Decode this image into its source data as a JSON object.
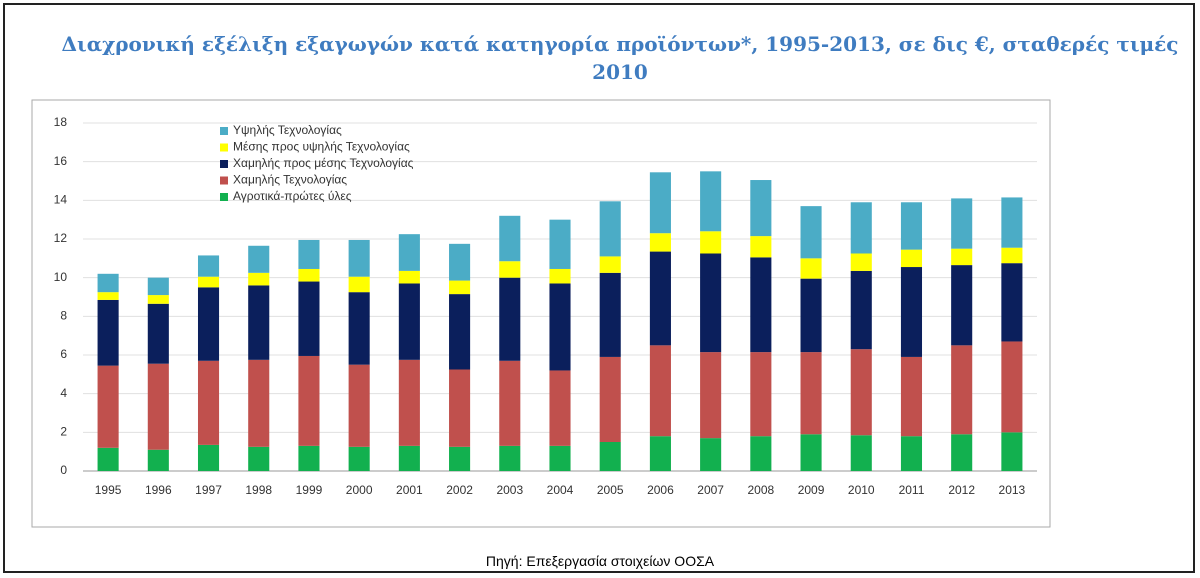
{
  "chart_data": {
    "type": "stacked_bar",
    "title": "Διαχρονική εξέλιξη εξαγωγών κατά κατηγορία προϊόντων*, 1995-2013, σε δις €, σταθερές τιμές 2010",
    "source": "Πηγή:  Επεξεργασία στοιχείων ΟΟΣΑ",
    "categories": [
      "1995",
      "1996",
      "1997",
      "1998",
      "1999",
      "2000",
      "2001",
      "2002",
      "2003",
      "2004",
      "2005",
      "2006",
      "2007",
      "2008",
      "2009",
      "2010",
      "2011",
      "2012",
      "2013"
    ],
    "series": [
      {
        "name": "Αγροτικά-πρώτες ύλες",
        "color": "#12b04f",
        "values": [
          1.2,
          1.1,
          1.35,
          1.25,
          1.3,
          1.25,
          1.3,
          1.25,
          1.3,
          1.3,
          1.5,
          1.8,
          1.7,
          1.8,
          1.9,
          1.85,
          1.8,
          1.9,
          2.0
        ]
      },
      {
        "name": "Χαμηλής Τεχνολογίας",
        "color": "#c0504d",
        "values": [
          4.25,
          4.45,
          4.35,
          4.5,
          4.65,
          4.25,
          4.45,
          4.0,
          4.4,
          3.9,
          4.4,
          4.7,
          4.45,
          4.35,
          4.25,
          4.45,
          4.1,
          4.6,
          4.7
        ]
      },
      {
        "name": "Χαμηλής προς μέσης Τεχνολογίας",
        "color": "#0b1f5c",
        "values": [
          3.4,
          3.1,
          3.8,
          3.85,
          3.85,
          3.75,
          3.95,
          3.9,
          4.3,
          4.5,
          4.35,
          4.85,
          5.1,
          4.9,
          3.8,
          4.05,
          4.65,
          4.15,
          4.05
        ]
      },
      {
        "name": "Μέσης προς υψηλής Τεχνολογίας",
        "color": "#ffff00",
        "values": [
          0.4,
          0.45,
          0.55,
          0.65,
          0.65,
          0.8,
          0.65,
          0.7,
          0.85,
          0.75,
          0.85,
          0.95,
          1.15,
          1.1,
          1.05,
          0.9,
          0.9,
          0.85,
          0.8
        ]
      },
      {
        "name": "Υψηλής Τεχνολογίας",
        "color": "#4bacc6",
        "values": [
          0.95,
          0.9,
          1.1,
          1.4,
          1.5,
          1.9,
          1.9,
          1.9,
          2.35,
          2.55,
          2.85,
          3.15,
          3.1,
          2.9,
          2.7,
          2.65,
          2.45,
          2.6,
          2.6
        ]
      }
    ],
    "ylim": [
      0,
      18
    ],
    "yticks": [
      0,
      2,
      4,
      6,
      8,
      10,
      12,
      14,
      16,
      18
    ],
    "grid": true,
    "legend": "top-left"
  }
}
